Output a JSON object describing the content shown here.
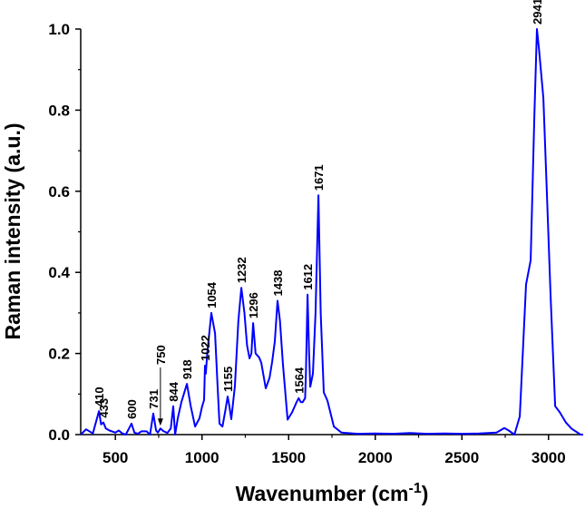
{
  "chart_data": {
    "type": "line",
    "title": "",
    "xlabel": "Wavenumber (cm",
    "xlabel_sup": "-1",
    "xlabel_close": ")",
    "ylabel": "Raman intensity (a.u.)",
    "xlim": [
      300,
      3200
    ],
    "ylim": [
      0,
      1.0
    ],
    "grid": false,
    "legend": "none",
    "line_color": "#0000ff",
    "x_ticks": [
      500,
      1000,
      1500,
      2000,
      2500,
      3000
    ],
    "x_tick_labels": [
      "500",
      "1000",
      "1500",
      "2000",
      "2500",
      "3000"
    ],
    "y_ticks": [
      0.0,
      0.2,
      0.4,
      0.6,
      0.8,
      1.0
    ],
    "y_tick_labels": [
      "0.0",
      "0.2",
      "0.4",
      "0.6",
      "0.8",
      "1.0"
    ],
    "series": [
      {
        "x": [
          300,
          331,
          370,
          405,
          418,
          431,
          445,
          466,
          500,
          520,
          540,
          560,
          593,
          610,
          630,
          650,
          680,
          700,
          719,
          735,
          745,
          760,
          776,
          800,
          820,
          834,
          845,
          860,
          881,
          913,
          935,
          960,
          985,
          1001,
          1012,
          1017,
          1022,
          1030,
          1054,
          1075,
          1090,
          1101,
          1118,
          1135,
          1148,
          1158,
          1169,
          1190,
          1210,
          1227,
          1245,
          1260,
          1274,
          1285,
          1295,
          1309,
          1330,
          1342,
          1368,
          1390,
          1405,
          1420,
          1436,
          1450,
          1467,
          1494,
          1520,
          1546,
          1558,
          1570,
          1581,
          1595,
          1600,
          1609,
          1618,
          1625,
          1640,
          1655,
          1672,
          1685,
          1703,
          1724,
          1761,
          1805,
          1900,
          2000,
          2100,
          2200,
          2300,
          2400,
          2500,
          2600,
          2700,
          2745,
          2770,
          2803,
          2834,
          2870,
          2897,
          2918,
          2933,
          2945,
          2970,
          2990,
          3012,
          3038,
          3065,
          3100,
          3132,
          3185,
          3200
        ],
        "y": [
          0.0,
          0.013,
          0.003,
          0.058,
          0.025,
          0.03,
          0.015,
          0.01,
          0.005,
          0.01,
          0.003,
          0.0,
          0.027,
          0.005,
          0.002,
          0.008,
          0.008,
          0.0,
          0.052,
          0.01,
          0.005,
          0.015,
          0.009,
          0.004,
          0.015,
          0.07,
          0.0,
          0.04,
          0.08,
          0.125,
          0.07,
          0.02,
          0.04,
          0.07,
          0.085,
          0.17,
          0.15,
          0.2,
          0.3,
          0.25,
          0.12,
          0.027,
          0.02,
          0.06,
          0.094,
          0.07,
          0.038,
          0.12,
          0.28,
          0.362,
          0.3,
          0.22,
          0.188,
          0.2,
          0.275,
          0.2,
          0.19,
          0.177,
          0.114,
          0.14,
          0.18,
          0.23,
          0.33,
          0.28,
          0.175,
          0.037,
          0.055,
          0.08,
          0.09,
          0.08,
          0.08,
          0.09,
          0.15,
          0.345,
          0.2,
          0.118,
          0.15,
          0.3,
          0.59,
          0.3,
          0.104,
          0.084,
          0.02,
          0.005,
          0.002,
          0.003,
          0.002,
          0.004,
          0.002,
          0.003,
          0.002,
          0.003,
          0.005,
          0.016,
          0.01,
          0.0,
          0.045,
          0.37,
          0.43,
          0.78,
          1.0,
          0.95,
          0.83,
          0.6,
          0.34,
          0.07,
          0.055,
          0.03,
          0.015,
          0.0,
          0.0
        ]
      }
    ],
    "annotations": [
      {
        "label": "410",
        "x": 405
      },
      {
        "label": "433",
        "x": 431
      },
      {
        "label": "600",
        "x": 593
      },
      {
        "label": "731",
        "x": 719
      },
      {
        "label": "750",
        "x": 760,
        "arrow": true
      },
      {
        "label": "844",
        "x": 834
      },
      {
        "label": "918",
        "x": 913
      },
      {
        "label": "1022",
        "x": 1017
      },
      {
        "label": "1054",
        "x": 1054
      },
      {
        "label": "1155",
        "x": 1148
      },
      {
        "label": "1232",
        "x": 1227
      },
      {
        "label": "1296",
        "x": 1295
      },
      {
        "label": "1438",
        "x": 1436
      },
      {
        "label": "1564",
        "x": 1558
      },
      {
        "label": "1612",
        "x": 1609
      },
      {
        "label": "1671",
        "x": 1672
      },
      {
        "label": "2941",
        "x": 2933
      }
    ]
  }
}
